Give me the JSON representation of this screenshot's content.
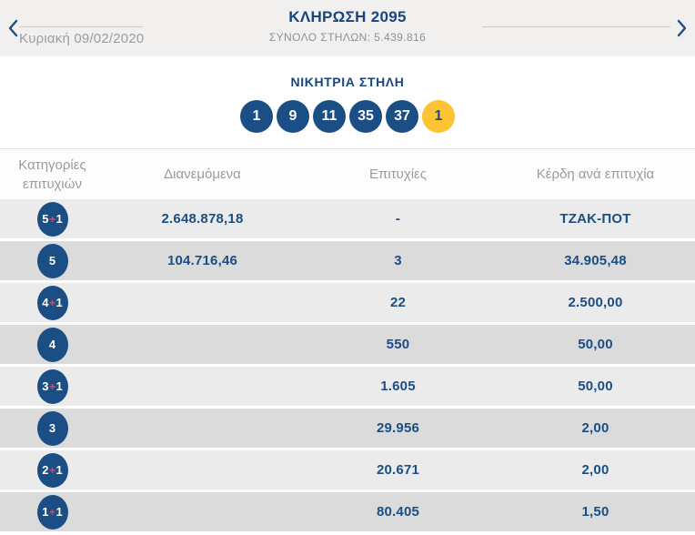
{
  "colors": {
    "brand_blue": "#1b4e84",
    "joker_yellow": "#fcc433",
    "plus_red": "#e0495a",
    "topbar_gray": "#f1f0ee",
    "row_light": "#ebebeb",
    "row_dark": "#dbdbdb"
  },
  "header": {
    "title": "ΚΛΗΡΩΣΗ 2095",
    "total_columns": "ΣΥΝΟΛΟ ΣΤΗΛΩΝ: 5.439.816",
    "date": "Κυριακή 09/02/2020",
    "prev_icon": "chevron-left",
    "next_icon": "chevron-right"
  },
  "winning": {
    "title": "ΝΙΚΗΤΡΙΑ ΣΤΗΛΗ",
    "numbers": [
      "1",
      "9",
      "11",
      "35",
      "37"
    ],
    "joker": "1"
  },
  "table": {
    "headers": [
      "Κατηγορίες επιτυχιών",
      "Διανεμόμενα",
      "Επιτυχίες",
      "Κέρδη ανά επιτυχία"
    ],
    "rows": [
      {
        "category": "5+1",
        "distributed": "2.648.878,18",
        "winners": "-",
        "prize": "ΤΖΑΚ-ΠΟΤ"
      },
      {
        "category": "5",
        "distributed": "104.716,46",
        "winners": "3",
        "prize": "34.905,48"
      },
      {
        "category": "4+1",
        "distributed": "",
        "winners": "22",
        "prize": "2.500,00"
      },
      {
        "category": "4",
        "distributed": "",
        "winners": "550",
        "prize": "50,00"
      },
      {
        "category": "3+1",
        "distributed": "",
        "winners": "1.605",
        "prize": "50,00"
      },
      {
        "category": "3",
        "distributed": "",
        "winners": "29.956",
        "prize": "2,00"
      },
      {
        "category": "2+1",
        "distributed": "",
        "winners": "20.671",
        "prize": "2,00"
      },
      {
        "category": "1+1",
        "distributed": "",
        "winners": "80.405",
        "prize": "1,50"
      }
    ]
  }
}
